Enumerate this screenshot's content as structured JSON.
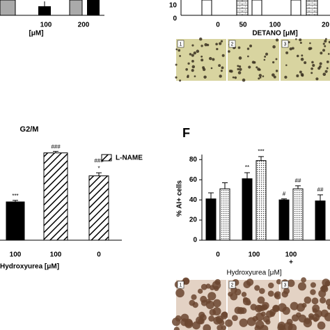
{
  "chart_data": [
    {
      "type": "bar",
      "title": "G2/M",
      "categories": [
        "100",
        "100",
        "0"
      ],
      "values": [
        25,
        57,
        42
      ],
      "errors": [
        1,
        1,
        2
      ],
      "bar_styles": [
        "solid",
        "hatch",
        "hatch"
      ],
      "color": "#000000",
      "legend": "L-NAME",
      "annotations": [
        [
          "***"
        ],
        [
          "###"
        ],
        [
          "###",
          "*"
        ]
      ],
      "xlabel": "Hydroxyurea [μM]",
      "ylim": [
        0,
        60
      ]
    },
    {
      "type": "bar",
      "panel": "F",
      "ylabel": "% AI+ cells",
      "categories": [
        "0",
        "100",
        [
          "100",
          "+"
        ],
        null
      ],
      "series": [
        {
          "color": "#000000",
          "values": [
            41,
            61,
            40,
            39
          ],
          "errors": [
            6,
            6,
            1,
            6
          ],
          "annotations": [
            null,
            "**",
            "#",
            "##"
          ]
        },
        {
          "pattern": "dots",
          "values": [
            51,
            79,
            51,
            null
          ],
          "errors": [
            6,
            4,
            3,
            null
          ],
          "annotations": [
            null,
            "***",
            "##",
            null
          ]
        }
      ],
      "xlabel": "Hydroxyurea [μM]",
      "ylim": [
        0,
        85
      ],
      "yticks": [
        0,
        20,
        40,
        60,
        80
      ]
    }
  ],
  "fragments": {
    "top_left": {
      "labels": [
        "100",
        "200"
      ],
      "unit": "[μM]"
    },
    "top_right": {
      "yticks": [
        "10",
        "0"
      ],
      "labels": [
        "0",
        "50",
        "100",
        "20"
      ],
      "xlabel": "DETANO [μM]",
      "image_labels": [
        "1",
        "2",
        "3"
      ]
    },
    "bottom_right": {
      "image_labels": [
        "1",
        "2",
        "3"
      ]
    }
  }
}
